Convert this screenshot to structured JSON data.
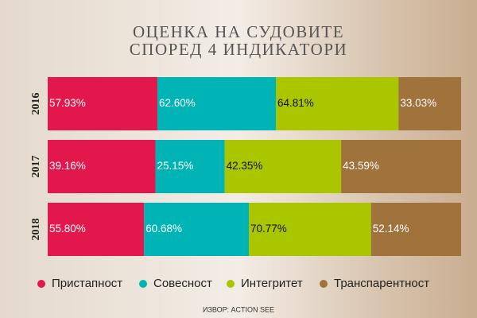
{
  "chart_data": {
    "type": "stacked-bar-100",
    "orientation": "horizontal",
    "title": [
      "ОЦЕНКА НА СУДОВИТЕ",
      "СПОРЕД 4 ИНДИКАТОРИ"
    ],
    "categories": [
      "2016",
      "2017",
      "2018"
    ],
    "series": [
      {
        "name": "Пристапност",
        "color": "#e2174c",
        "values": [
          57.93,
          39.16,
          55.8
        ],
        "value_labels": [
          "57.93%",
          "39.16%",
          "55.80%"
        ]
      },
      {
        "name": "Совесност",
        "color": "#00b3b5",
        "values": [
          62.6,
          25.15,
          60.68
        ],
        "value_labels": [
          "62.60%",
          "25.15%",
          "60.68%"
        ]
      },
      {
        "name": "Интегритет",
        "color": "#a9c600",
        "values": [
          64.81,
          42.35,
          70.77
        ],
        "value_labels": [
          "64.81%",
          "42.35%",
          "70.77%"
        ]
      },
      {
        "name": "Транспарентност",
        "color": "#a0723c",
        "values": [
          33.03,
          43.59,
          52.14
        ],
        "value_labels": [
          "33.03%",
          "43.59%",
          "52.14%"
        ]
      }
    ],
    "source": "ИЗВОР: ACTION SEE"
  }
}
